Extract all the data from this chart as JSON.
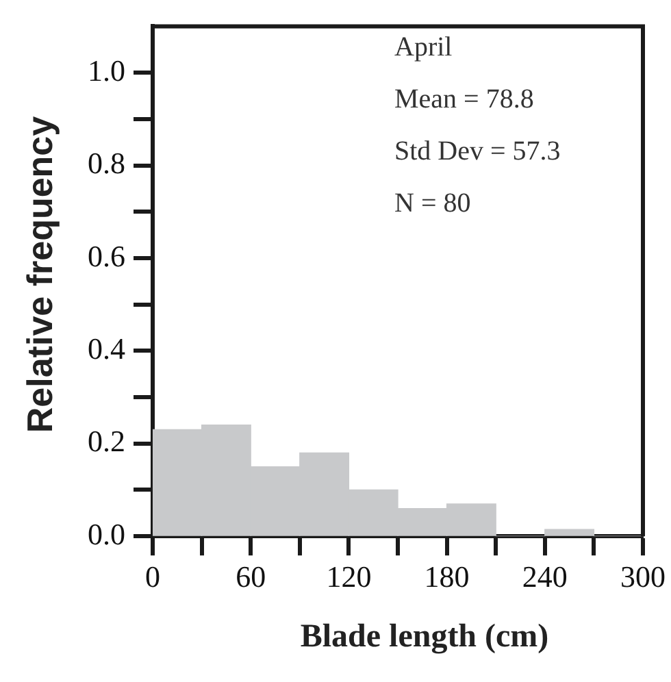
{
  "chart_data": {
    "type": "histogram",
    "xlabel": "Blade length (cm)",
    "ylabel": "Relative frequency",
    "bins": [
      0,
      30,
      60,
      90,
      120,
      150,
      180,
      210,
      240,
      270,
      300
    ],
    "values": [
      0.23,
      0.24,
      0.15,
      0.18,
      0.1,
      0.06,
      0.07,
      0,
      0.015,
      0
    ],
    "color": "#c8c9cb",
    "xlim": [
      0,
      300
    ],
    "xticks": [
      0,
      {
        "value": 30,
        "label": null
      },
      60,
      {
        "value": 90,
        "label": null
      },
      120,
      {
        "value": 150,
        "label": null
      },
      180,
      {
        "value": 210,
        "label": null
      },
      240,
      {
        "value": 270,
        "label": null
      },
      300
    ],
    "ylim": [
      0,
      1.1
    ],
    "yticks": [
      {
        "value": 0,
        "label": "0.0"
      },
      {
        "value": 0.1,
        "label": null
      },
      {
        "value": 0.2,
        "label": "0.2"
      },
      {
        "value": 0.3,
        "label": null
      },
      {
        "value": 0.4,
        "label": "0.4"
      },
      {
        "value": 0.5,
        "label": null
      },
      {
        "value": 0.6,
        "label": "0.6"
      },
      {
        "value": 0.7,
        "label": null
      },
      {
        "value": 0.8,
        "label": "0.8"
      },
      {
        "value": 0.9,
        "label": null
      },
      {
        "value": 1.0,
        "label": "1.0"
      }
    ],
    "grid": false,
    "legend": false,
    "annotations": [
      "April",
      "Mean = 78.8",
      "Std Dev = 57.3",
      "N = 80"
    ]
  }
}
